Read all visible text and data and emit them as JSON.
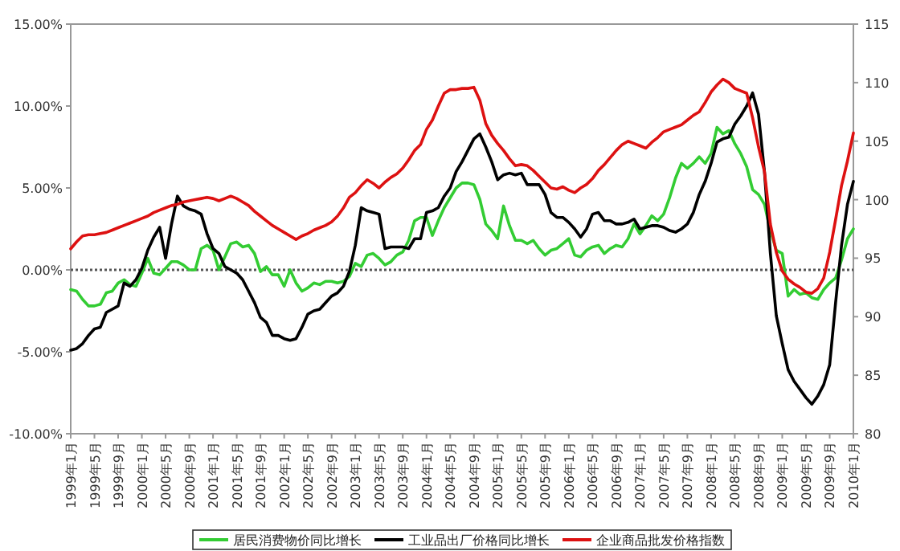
{
  "chart_data": {
    "type": "line",
    "categories": [
      "1999年1月",
      null,
      null,
      null,
      "1999年5月",
      null,
      null,
      null,
      "1999年9月",
      null,
      null,
      null,
      "2000年1月",
      null,
      null,
      null,
      "2000年5月",
      null,
      null,
      null,
      "2000年9月",
      null,
      null,
      null,
      "2001年1月",
      null,
      null,
      null,
      "2001年5月",
      null,
      null,
      null,
      "2001年9月",
      null,
      null,
      null,
      "2002年1月",
      null,
      null,
      null,
      "2002年5月",
      null,
      null,
      null,
      "2002年9月",
      null,
      null,
      null,
      "2003年1月",
      null,
      null,
      null,
      "2003年5月",
      null,
      null,
      null,
      "2003年9月",
      null,
      null,
      null,
      "2004年1月",
      null,
      null,
      null,
      "2004年5月",
      null,
      null,
      null,
      "2004年9月",
      null,
      null,
      null,
      "2005年1月",
      null,
      null,
      null,
      "2005年5月",
      null,
      null,
      null,
      "2005年9月",
      null,
      null,
      null,
      "2006年1月",
      null,
      null,
      null,
      "2006年5月",
      null,
      null,
      null,
      "2006年9月",
      null,
      null,
      null,
      "2007年1月",
      null,
      null,
      null,
      "2007年5月",
      null,
      null,
      null,
      "2007年9月",
      null,
      null,
      null,
      "2008年1月",
      null,
      null,
      null,
      "2008年5月",
      null,
      null,
      null,
      "2008年9月",
      null,
      null,
      null,
      "2009年1月",
      null,
      null,
      null,
      "2009年5月",
      null,
      null,
      null,
      "2009年9月",
      null,
      null,
      null,
      "2010年1月"
    ],
    "series": [
      {
        "name": "居民消费物价同比增长",
        "color": "#33cc33",
        "values": [
          -1.2,
          -1.3,
          -1.8,
          -2.2,
          -2.2,
          -2.1,
          -1.4,
          -1.3,
          -0.8,
          -0.6,
          -0.9,
          -1.0,
          -0.2,
          0.7,
          -0.2,
          -0.3,
          0.1,
          0.5,
          0.5,
          0.3,
          0.0,
          0.0,
          1.3,
          1.5,
          1.2,
          0.0,
          0.8,
          1.6,
          1.7,
          1.4,
          1.5,
          1.0,
          -0.1,
          0.2,
          -0.3,
          -0.3,
          -1.0,
          0.0,
          -0.8,
          -1.3,
          -1.1,
          -0.8,
          -0.9,
          -0.7,
          -0.7,
          -0.8,
          -0.7,
          -0.4,
          0.4,
          0.2,
          0.9,
          1.0,
          0.7,
          0.3,
          0.5,
          0.9,
          1.1,
          1.8,
          3.0,
          3.2,
          3.2,
          2.1,
          3.0,
          3.8,
          4.4,
          5.0,
          5.3,
          5.3,
          5.2,
          4.3,
          2.8,
          2.4,
          1.9,
          3.9,
          2.7,
          1.8,
          1.8,
          1.6,
          1.8,
          1.3,
          0.9,
          1.2,
          1.3,
          1.6,
          1.9,
          0.9,
          0.8,
          1.2,
          1.4,
          1.5,
          1.0,
          1.3,
          1.5,
          1.4,
          1.9,
          2.8,
          2.2,
          2.7,
          3.3,
          3.0,
          3.4,
          4.4,
          5.6,
          6.5,
          6.2,
          6.5,
          6.9,
          6.5,
          7.1,
          8.7,
          8.3,
          8.5,
          7.7,
          7.1,
          6.3,
          4.9,
          4.6,
          4.0,
          2.4,
          1.2,
          1.0,
          -1.6,
          -1.2,
          -1.5,
          -1.4,
          -1.7,
          -1.8,
          -1.2,
          -0.8,
          -0.5,
          0.6,
          1.9,
          2.5
        ]
      },
      {
        "name": "工业品出厂价格同比增长",
        "color": "#000000",
        "values": [
          -4.9,
          -4.8,
          -4.5,
          -4.0,
          -3.6,
          -3.5,
          -2.6,
          -2.4,
          -2.2,
          -0.8,
          -1.0,
          -0.6,
          0.1,
          1.2,
          2.0,
          2.6,
          0.7,
          2.8,
          4.5,
          3.9,
          3.7,
          3.6,
          3.4,
          2.2,
          1.3,
          1.0,
          0.2,
          0.0,
          -0.2,
          -0.6,
          -1.3,
          -2.0,
          -2.9,
          -3.2,
          -4.0,
          -4.0,
          -4.2,
          -4.3,
          -4.2,
          -3.5,
          -2.7,
          -2.5,
          -2.4,
          -2.0,
          -1.6,
          -1.4,
          -1.0,
          -0.1,
          1.5,
          3.8,
          3.6,
          3.5,
          3.4,
          1.3,
          1.4,
          1.4,
          1.4,
          1.3,
          1.9,
          1.9,
          3.5,
          3.6,
          3.8,
          4.5,
          5.0,
          6.0,
          6.6,
          7.3,
          8.0,
          8.3,
          7.5,
          6.6,
          5.5,
          5.8,
          5.9,
          5.8,
          5.9,
          5.2,
          5.2,
          5.2,
          4.6,
          3.5,
          3.2,
          3.2,
          2.9,
          2.5,
          2.0,
          2.5,
          3.4,
          3.5,
          3.0,
          3.0,
          2.8,
          2.8,
          2.9,
          3.1,
          2.5,
          2.6,
          2.7,
          2.7,
          2.6,
          2.4,
          2.3,
          2.5,
          2.8,
          3.5,
          4.6,
          5.4,
          6.5,
          7.8,
          8.0,
          8.1,
          8.9,
          9.4,
          10.0,
          10.8,
          9.5,
          6.0,
          1.0,
          -2.8,
          -4.5,
          -6.1,
          -6.8,
          -7.3,
          -7.8,
          -8.2,
          -7.7,
          -7.0,
          -5.8,
          -2.0,
          1.5,
          4.0,
          5.4
        ]
      },
      {
        "name": "企业商品批发价格指数",
        "color": "#dd1111",
        "axis": "y2",
        "values": [
          95.8,
          96.4,
          96.9,
          97.0,
          97.0,
          97.1,
          97.2,
          97.4,
          97.6,
          97.8,
          98.0,
          98.2,
          98.4,
          98.6,
          98.9,
          99.1,
          99.3,
          99.5,
          99.6,
          99.8,
          99.9,
          100.0,
          100.1,
          100.2,
          100.1,
          99.9,
          100.1,
          100.3,
          100.1,
          99.8,
          99.5,
          99.0,
          98.6,
          98.2,
          97.8,
          97.5,
          97.2,
          96.9,
          96.6,
          96.9,
          97.1,
          97.4,
          97.6,
          97.8,
          98.1,
          98.6,
          99.3,
          100.2,
          100.6,
          101.2,
          101.7,
          101.4,
          101.0,
          101.5,
          101.9,
          102.2,
          102.7,
          103.4,
          104.2,
          104.7,
          106.0,
          106.8,
          108.0,
          109.1,
          109.4,
          109.4,
          109.5,
          109.5,
          109.6,
          108.5,
          106.5,
          105.5,
          104.8,
          104.2,
          103.5,
          102.9,
          103.0,
          102.9,
          102.5,
          102.0,
          101.5,
          101.0,
          100.9,
          101.1,
          100.8,
          100.6,
          101.0,
          101.3,
          101.8,
          102.5,
          103.0,
          103.6,
          104.2,
          104.7,
          105.0,
          104.8,
          104.6,
          104.4,
          104.9,
          105.3,
          105.8,
          106.0,
          106.2,
          106.4,
          106.8,
          107.2,
          107.5,
          108.3,
          109.2,
          109.8,
          110.3,
          110.0,
          109.5,
          109.3,
          109.1,
          107.0,
          104.5,
          102.4,
          97.9,
          95.5,
          93.9,
          93.2,
          92.8,
          92.5,
          92.1,
          92.0,
          92.4,
          93.3,
          95.5,
          98.3,
          101.2,
          103.3,
          105.7
        ]
      }
    ],
    "ylim": [
      -10,
      15
    ],
    "yticks": [
      {
        "value": -10,
        "label": "-10.00%"
      },
      {
        "value": -5,
        "label": "-5.00%"
      },
      {
        "value": 0,
        "label": "0.00%"
      },
      {
        "value": 5,
        "label": "5.00%"
      },
      {
        "value": 10,
        "label": "10.00%"
      },
      {
        "value": 15,
        "label": "15.00%"
      }
    ],
    "y2lim": [
      80,
      115
    ],
    "y2ticks": [
      80,
      85,
      90,
      95,
      100,
      105,
      110,
      115
    ],
    "ref_lines": [
      {
        "axis": "y",
        "value": 0,
        "color": "#555555",
        "line_style": "dotted"
      }
    ],
    "legend": "bottom"
  }
}
